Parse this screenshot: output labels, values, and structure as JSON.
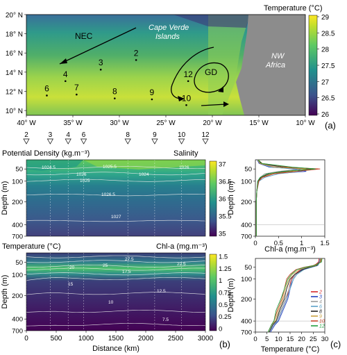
{
  "colors": {
    "ocean_mid": "#4fae6a",
    "land": "#8c8c8c",
    "section_dark": "#3b3a78",
    "section_high": "#5ec85c",
    "accent_red": "#d62728"
  },
  "panel_a": {
    "colorbar_title": "Temperature (°C)",
    "colorbar_ticks": [
      "29",
      "28.5",
      "28",
      "27.5",
      "27",
      "26.5",
      "26"
    ],
    "lat_labels": [
      "20° N",
      "18° N",
      "16° N",
      "14° N",
      "12° N",
      "10° N"
    ],
    "lon_labels": [
      "40° W",
      "35° W",
      "30° W",
      "25° W",
      "20° W",
      "15° W",
      "10° W"
    ],
    "region_labels": {
      "nec": "NEC",
      "cape_verde_1": "Cape Verde",
      "cape_verde_2": "Islands",
      "gd": "GD",
      "africa_1": "NW",
      "africa_2": "Africa"
    },
    "stations": [
      "2",
      "3",
      "4",
      "6",
      "7",
      "8",
      "9",
      "10",
      "12"
    ],
    "tag": "(a)"
  },
  "station_markers": [
    "2",
    "3",
    "4",
    "6",
    "8",
    "9",
    "10",
    "12"
  ],
  "panel_b": {
    "top_left_title": "Potential Density (kg.m⁻³)",
    "top_right_title": "Salinity",
    "salinity_ticks": [
      "37",
      "36.5",
      "36",
      "35.5",
      "35"
    ],
    "density_contours": [
      "1024.5",
      "1026",
      "1025.5",
      "1024",
      "1026",
      "1025",
      "1026.5",
      "1027"
    ],
    "bottom_left_title": "Temperature (°C)",
    "bottom_right_title": "Chl-a (mg.m⁻³)",
    "chl_ticks": [
      "1.5",
      "1.25",
      "1",
      "0.75",
      "0.5",
      "0.25",
      "0"
    ],
    "temp_contours": [
      "27.5",
      "25",
      "22.5",
      "20",
      "17.5",
      "15",
      "12.5",
      "10",
      "7.5"
    ],
    "depth_label": "Depth (m)",
    "depth_ticks": [
      "50",
      "100",
      "200",
      "400",
      "700"
    ],
    "x_label": "Distance (km)",
    "x_ticks": [
      "0",
      "500",
      "1000",
      "1500",
      "2000",
      "2500",
      "3000"
    ],
    "tag": "(b)"
  },
  "panel_c": {
    "top_xlabel": "Chl-a (mg.m⁻³)",
    "top_xticks": [
      "0",
      "0.5",
      "1",
      "1.5"
    ],
    "bottom_xlabel": "Temperature (°C)",
    "bottom_xticks": [
      "0",
      "5",
      "10",
      "15",
      "20",
      "25",
      "30"
    ],
    "depth_label": "Depth (m)",
    "depth_ticks": [
      "50",
      "100",
      "200",
      "400",
      "700"
    ],
    "legend": [
      {
        "name": "2",
        "color": "#d62728"
      },
      {
        "name": "3",
        "color": "#1f3fbf"
      },
      {
        "name": "4",
        "color": "#9a9a9a"
      },
      {
        "name": "6",
        "color": "#5aa0c8"
      },
      {
        "name": "8",
        "color": "#202020"
      },
      {
        "name": "9",
        "color": "#c8a040"
      },
      {
        "name": "10",
        "color": "#c8462a"
      },
      {
        "name": "12",
        "color": "#22a040"
      }
    ],
    "tag": "(c)"
  },
  "chart_data": [
    {
      "type": "heatmap",
      "panel": "a",
      "title": "Temperature (°C)",
      "x_ticks": [
        "40° W",
        "35° W",
        "30° W",
        "25° W",
        "20° W",
        "15° W",
        "10° W"
      ],
      "y_ticks": [
        "20° N",
        "18° N",
        "16° N",
        "14° N",
        "12° N",
        "10° N"
      ],
      "xlim": [
        -40,
        -10
      ],
      "ylim": [
        9.5,
        20
      ],
      "color_range": [
        26,
        29
      ],
      "stations": [
        {
          "name": "2",
          "lon": -28.2,
          "lat": 15.7
        },
        {
          "name": "3",
          "lon": -32.0,
          "lat": 14.7
        },
        {
          "name": "4",
          "lon": -35.8,
          "lat": 13.5
        },
        {
          "name": "6",
          "lon": -37.8,
          "lat": 12.0
        },
        {
          "name": "7",
          "lon": -34.6,
          "lat": 12.1
        },
        {
          "name": "8",
          "lon": -30.5,
          "lat": 11.7
        },
        {
          "name": "9",
          "lon": -26.5,
          "lat": 11.6
        },
        {
          "name": "10",
          "lon": -22.8,
          "lat": 11.0
        },
        {
          "name": "12",
          "lon": -22.6,
          "lat": 13.5
        }
      ]
    },
    {
      "type": "heatmap",
      "panel": "b-top",
      "ylabel": "Depth (m)",
      "xlim": [
        0,
        3000
      ],
      "depth_ticks": [
        50,
        100,
        200,
        400,
        700
      ],
      "color_range": [
        35,
        37
      ]
    },
    {
      "type": "heatmap",
      "panel": "b-bottom",
      "xlabel": "Distance (km)",
      "ylabel": "Depth (m)",
      "xlim": [
        0,
        3000
      ],
      "depth_ticks": [
        50,
        100,
        200,
        400,
        700
      ],
      "color_range": [
        0,
        1.5
      ]
    },
    {
      "type": "line",
      "panel": "c-top",
      "xlabel": "Chl-a (mg.m⁻³)",
      "ylabel": "Depth (m)",
      "xlim": [
        0,
        1.5
      ],
      "depths": [
        0,
        20,
        40,
        50,
        60,
        70,
        85,
        100,
        150,
        200,
        400,
        700
      ],
      "series": [
        {
          "name": "2",
          "values": [
            0.05,
            0.1,
            0.4,
            1.2,
            0.6,
            0.25,
            0.12,
            0.06,
            0.03,
            0.02,
            0.02,
            0.02
          ]
        },
        {
          "name": "3",
          "values": [
            0.04,
            0.08,
            0.3,
            0.9,
            1.1,
            0.4,
            0.15,
            0.07,
            0.03,
            0.02,
            0.02,
            0.02
          ]
        },
        {
          "name": "4",
          "values": [
            0.05,
            0.1,
            0.5,
            1.0,
            0.5,
            0.2,
            0.1,
            0.05,
            0.03,
            0.02,
            0.02,
            0.02
          ]
        },
        {
          "name": "6",
          "values": [
            0.05,
            0.1,
            0.35,
            0.8,
            1.0,
            0.5,
            0.2,
            0.08,
            0.03,
            0.02,
            0.02,
            0.02
          ]
        },
        {
          "name": "8",
          "values": [
            0.05,
            0.12,
            0.6,
            1.35,
            0.7,
            0.3,
            0.12,
            0.06,
            0.03,
            0.02,
            0.02,
            0.02
          ]
        },
        {
          "name": "9",
          "values": [
            0.05,
            0.1,
            0.4,
            1.1,
            0.8,
            0.35,
            0.14,
            0.07,
            0.03,
            0.02,
            0.02,
            0.02
          ]
        },
        {
          "name": "10",
          "values": [
            0.06,
            0.15,
            0.7,
            1.4,
            0.9,
            0.4,
            0.15,
            0.07,
            0.03,
            0.02,
            0.02,
            0.02
          ]
        },
        {
          "name": "12",
          "values": [
            0.06,
            0.14,
            0.8,
            1.3,
            0.6,
            0.25,
            0.1,
            0.05,
            0.03,
            0.02,
            0.02,
            0.02
          ]
        }
      ]
    },
    {
      "type": "line",
      "panel": "c-bottom",
      "xlabel": "Temperature (°C)",
      "ylabel": "Depth (m)",
      "xlim": [
        0,
        30
      ],
      "depths": [
        0,
        20,
        40,
        50,
        60,
        80,
        100,
        150,
        200,
        300,
        400,
        500,
        700
      ],
      "series": [
        {
          "name": "2",
          "values": [
            27.5,
            27.3,
            25.5,
            22.5,
            19.5,
            17,
            15.5,
            14.5,
            13.5,
            11.5,
            9.5,
            8,
            6
          ]
        },
        {
          "name": "3",
          "values": [
            27.8,
            27.6,
            26,
            23,
            20,
            17.5,
            16,
            15,
            14,
            12,
            10,
            8.5,
            6.5
          ]
        },
        {
          "name": "4",
          "values": [
            27.8,
            27.7,
            27,
            24,
            20.5,
            17.5,
            16,
            14.5,
            13,
            11,
            9,
            7.5,
            6
          ]
        },
        {
          "name": "6",
          "values": [
            28,
            27.8,
            27,
            24.5,
            21,
            18,
            16.5,
            15,
            13.5,
            11.5,
            9.5,
            8,
            6
          ]
        },
        {
          "name": "8",
          "values": [
            28.2,
            28,
            26.5,
            23.5,
            20.5,
            17,
            15,
            13.5,
            12.5,
            10.5,
            9,
            7.5,
            6
          ]
        },
        {
          "name": "9",
          "values": [
            28.3,
            28.1,
            26,
            22.5,
            19,
            16,
            14.5,
            13,
            12,
            10,
            8.5,
            7,
            5.5
          ]
        },
        {
          "name": "10",
          "values": [
            28.6,
            28.4,
            25,
            21,
            17.5,
            15,
            13.5,
            12.5,
            11.5,
            9.5,
            8,
            7,
            5.5
          ]
        },
        {
          "name": "12",
          "values": [
            28.8,
            28.6,
            25.5,
            21.5,
            18,
            15.5,
            14,
            12.5,
            11,
            9,
            8,
            7,
            5.5
          ]
        }
      ]
    }
  ]
}
